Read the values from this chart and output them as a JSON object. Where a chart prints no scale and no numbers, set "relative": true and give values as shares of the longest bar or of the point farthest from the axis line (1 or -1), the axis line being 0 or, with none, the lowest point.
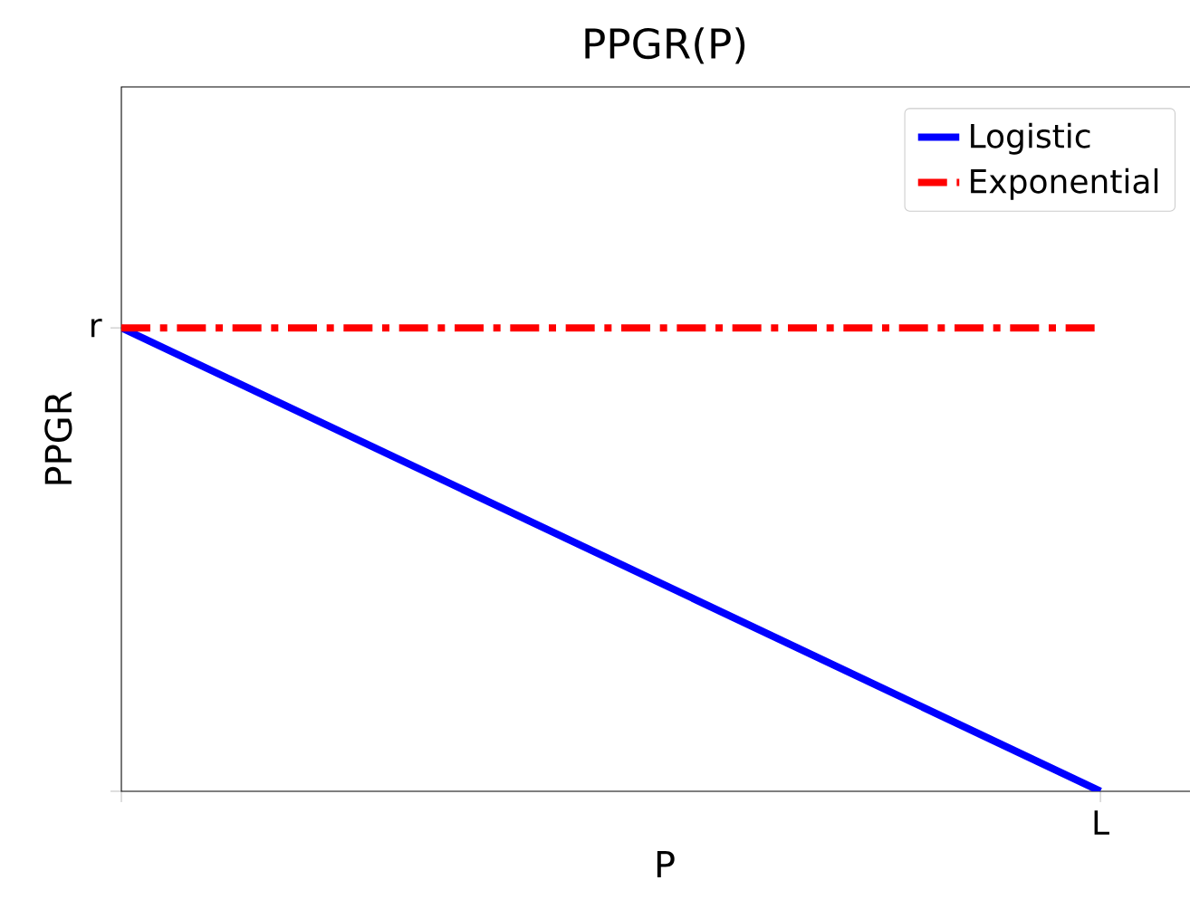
{
  "chart_data": {
    "type": "line",
    "title": "PPGR(P)",
    "xlabel": "P",
    "ylabel": "PPGR",
    "relative": true,
    "categories": [
      null,
      null
    ],
    "annotations": [
      "r",
      "L"
    ],
    "legend": "top right",
    "series": [
      {
        "name": "Logistic",
        "color": "#0000ff",
        "values": [
          1,
          0
        ],
        "line_style": "solid"
      },
      {
        "name": "Exponential",
        "color": "#ff0000",
        "values": [
          1,
          1
        ],
        "line_style": "dashdot"
      }
    ]
  }
}
